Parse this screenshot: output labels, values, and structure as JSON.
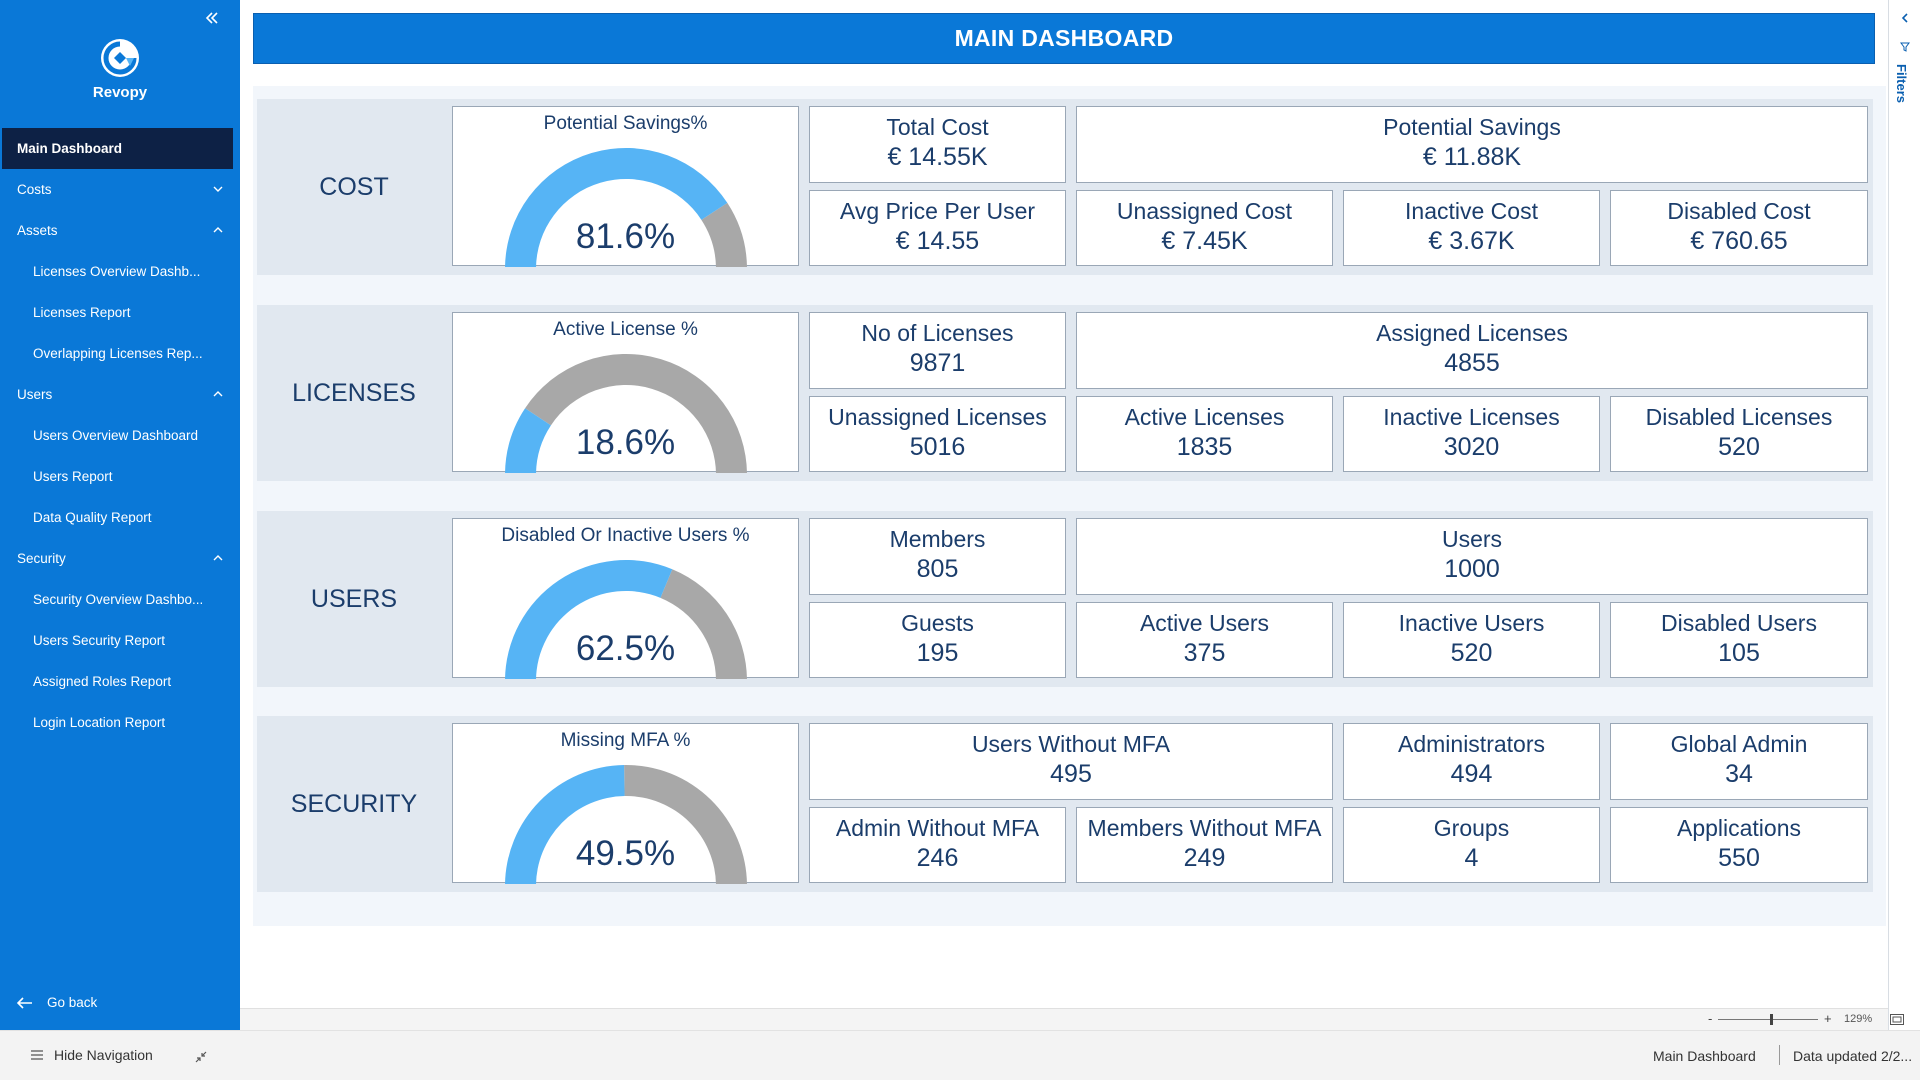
{
  "sidebar": {
    "brand": "Revopy",
    "items": [
      {
        "label": "Main Dashboard"
      },
      {
        "label": "Costs"
      },
      {
        "label": "Assets"
      },
      {
        "label": "Licenses Overview Dashb..."
      },
      {
        "label": "Licenses Report"
      },
      {
        "label": "Overlapping Licenses Rep..."
      },
      {
        "label": "Users"
      },
      {
        "label": "Users Overview Dashboard"
      },
      {
        "label": "Users Report"
      },
      {
        "label": "Data Quality Report"
      },
      {
        "label": "Security"
      },
      {
        "label": "Security Overview Dashbo..."
      },
      {
        "label": "Users Security Report"
      },
      {
        "label": "Assigned Roles Report"
      },
      {
        "label": "Login Location Report"
      }
    ],
    "go_back": "Go back"
  },
  "header": {
    "title": "MAIN DASHBOARD"
  },
  "sections": [
    {
      "name": "COST",
      "gauge": {
        "title": "Potential Savings%",
        "value_text": "81.6%",
        "value": 0.816
      },
      "cards": [
        {
          "label": "Total Cost",
          "value": "€ 14.55K"
        },
        {
          "label": "Potential Savings",
          "value": "€ 11.88K"
        },
        {
          "label": "Avg Price Per User",
          "value": "€ 14.55"
        },
        {
          "label": "Unassigned Cost",
          "value": "€ 7.45K"
        },
        {
          "label": "Inactive Cost",
          "value": "€ 3.67K"
        },
        {
          "label": "Disabled Cost",
          "value": "€ 760.65"
        }
      ]
    },
    {
      "name": "LICENSES",
      "gauge": {
        "title": "Active License %",
        "value_text": "18.6%",
        "value": 0.186
      },
      "cards": [
        {
          "label": "No of Licenses",
          "value": "9871"
        },
        {
          "label": "Assigned Licenses",
          "value": "4855"
        },
        {
          "label": "Unassigned Licenses",
          "value": "5016"
        },
        {
          "label": "Active Licenses",
          "value": "1835"
        },
        {
          "label": "Inactive Licenses",
          "value": "3020"
        },
        {
          "label": "Disabled Licenses",
          "value": "520"
        }
      ]
    },
    {
      "name": "USERS",
      "gauge": {
        "title": "Disabled Or Inactive Users %",
        "value_text": "62.5%",
        "value": 0.625
      },
      "cards": [
        {
          "label": "Members",
          "value": "805"
        },
        {
          "label": "Users",
          "value": "1000"
        },
        {
          "label": "Guests",
          "value": "195"
        },
        {
          "label": "Active Users",
          "value": "375"
        },
        {
          "label": "Inactive Users",
          "value": "520"
        },
        {
          "label": "Disabled Users",
          "value": "105"
        }
      ]
    },
    {
      "name": "SECURITY",
      "gauge": {
        "title": "Missing MFA %",
        "value_text": "49.5%",
        "value": 0.495
      },
      "cards": [
        {
          "label": "Users Without MFA",
          "value": "495"
        },
        {
          "label": "Administrators",
          "value": "494"
        },
        {
          "label": "Global Admin",
          "value": "34"
        },
        {
          "label": "Admin Without MFA",
          "value": "246"
        },
        {
          "label": "Members Without MFA",
          "value": "249"
        },
        {
          "label": "Groups",
          "value": "4"
        },
        {
          "label": "Applications",
          "value": "550"
        }
      ]
    }
  ],
  "filters": {
    "label": "Filters"
  },
  "zoom": {
    "minus": "-",
    "plus": "+",
    "percent": "129%",
    "level": 0.5
  },
  "statusbar": {
    "hide_navigation": "Hide Navigation",
    "page_name": "Main Dashboard",
    "updated": "Data updated 2/2..."
  },
  "colors": {
    "primary": "#0a78d7",
    "gauge_fill": "#56b4f5",
    "gauge_rest": "#a8a8a8",
    "active_nav": "#0d2145",
    "text": "#1b3d6b"
  }
}
